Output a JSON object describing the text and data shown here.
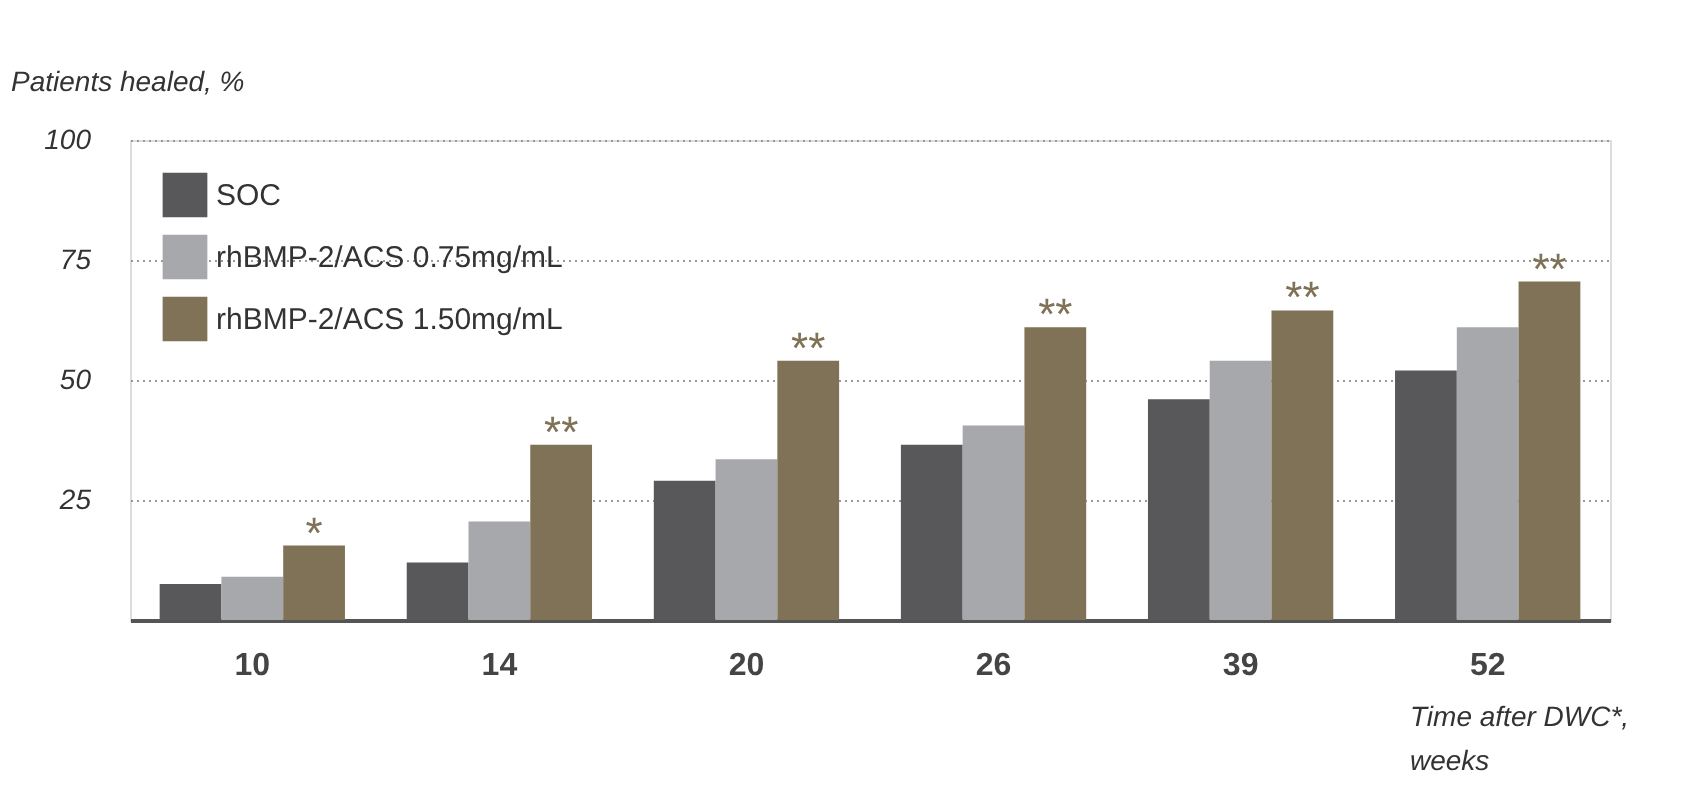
{
  "chart_data": {
    "type": "bar",
    "categories": [
      "10",
      "14",
      "20",
      "26",
      "39",
      "52"
    ],
    "series": [
      {
        "name": "SOC",
        "color": "#58585a",
        "values": [
          7.5,
          12,
          29,
          36.5,
          46,
          52
        ]
      },
      {
        "name": "rhBMP-2/ACS 0.75mg/mL",
        "color": "#a7a8ab",
        "values": [
          9,
          20.5,
          33.5,
          40.5,
          54,
          61
        ]
      },
      {
        "name": "rhBMP-2/ACS 1.50mg/mL",
        "color": "#7f7256",
        "values": [
          15.5,
          36.5,
          54,
          61,
          64.5,
          70.5
        ],
        "value_labels": [
          "*",
          "**",
          "**",
          "**",
          "**",
          "**"
        ]
      }
    ],
    "ylim": [
      0,
      100
    ],
    "yticks": [
      25,
      50,
      75,
      100
    ],
    "ylabel": "Patients healed, %",
    "xlabel": "Time after DWC*, weeks",
    "grid": "y",
    "legend": "top left"
  }
}
